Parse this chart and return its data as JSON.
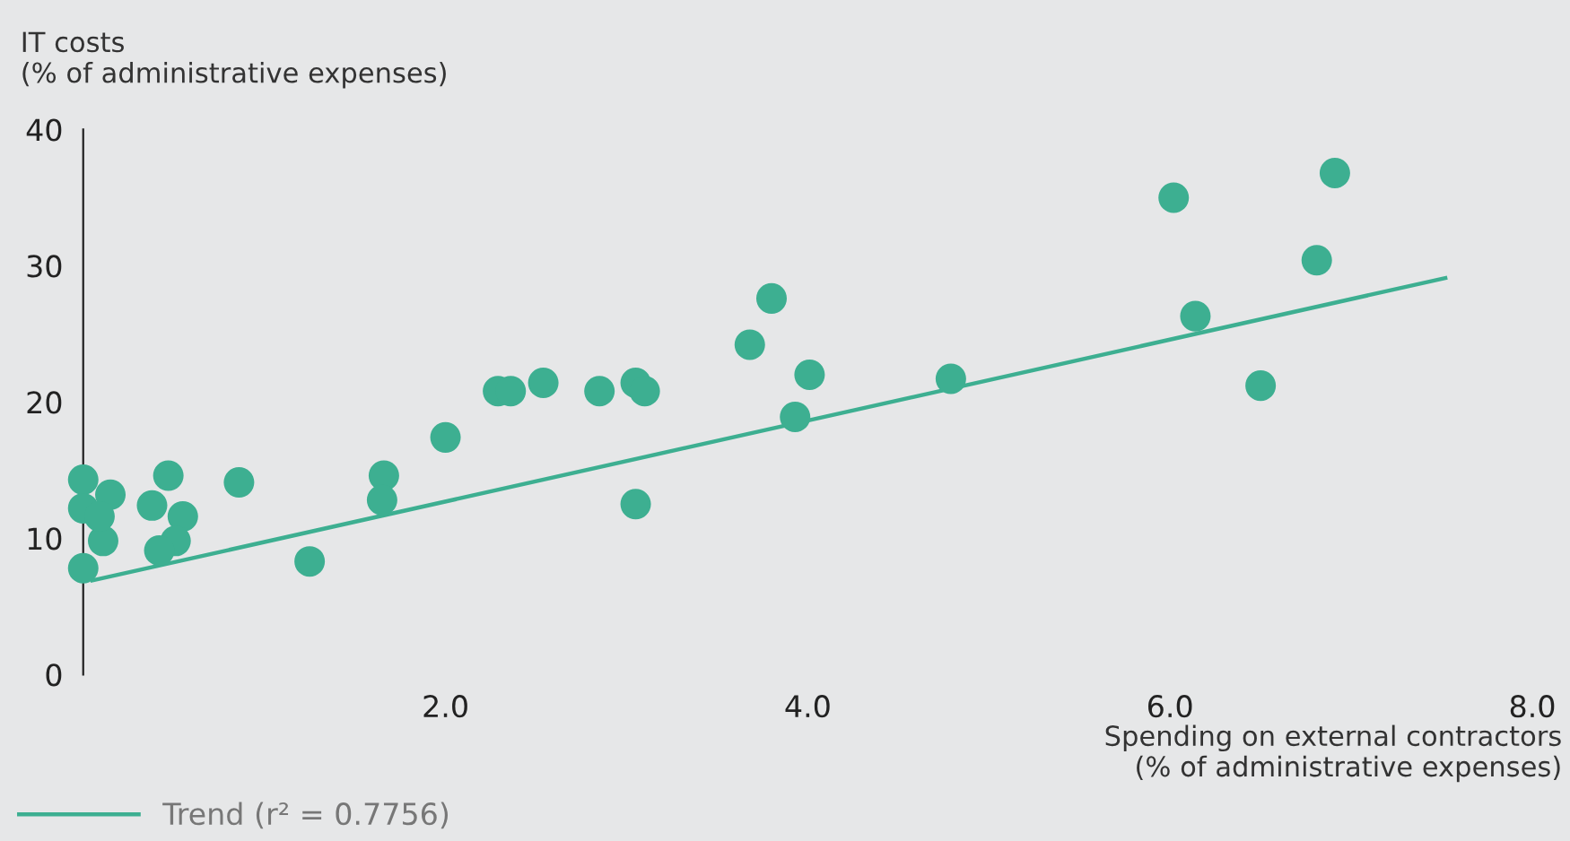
{
  "chart_data": {
    "type": "scatter",
    "ylabel": "IT costs\n(% of administrative expenses)",
    "xlabel": "Spending on external contractors\n(% of administrative expenses)",
    "xlim": [
      0,
      8
    ],
    "ylim": [
      0,
      40
    ],
    "xticks": [
      {
        "value": 2,
        "label": "2.0"
      },
      {
        "value": 4,
        "label": "4.0"
      },
      {
        "value": 6,
        "label": "6.0"
      },
      {
        "value": 8,
        "label": "8.0"
      }
    ],
    "yticks": [
      0,
      10,
      20,
      30,
      40
    ],
    "grid": false,
    "legend": "bottom left",
    "marker": "circle",
    "series": [
      {
        "color": "#3daf91",
        "x": [
          0.0,
          0.0,
          0.15,
          0.11,
          0.38,
          0.47,
          0.55,
          0.51,
          0.42,
          0.0,
          0.09,
          0.86,
          1.25,
          1.66,
          1.65,
          2.0,
          2.29,
          2.36,
          2.54,
          2.85,
          3.05,
          3.1,
          3.05,
          3.68,
          3.8,
          4.01,
          3.93,
          4.79,
          6.02,
          6.14,
          6.5,
          6.81,
          6.91
        ],
        "values": [
          14.3,
          12.2,
          13.2,
          9.8,
          12.4,
          14.6,
          11.6,
          9.8,
          9.1,
          7.8,
          11.6,
          14.1,
          8.3,
          14.6,
          12.8,
          17.4,
          20.8,
          20.8,
          21.4,
          20.8,
          21.4,
          20.8,
          12.5,
          24.2,
          27.6,
          22.0,
          18.9,
          21.7,
          35.0,
          26.3,
          21.2,
          30.4,
          36.8
        ]
      },
      {
        "type": "line",
        "name": "Trend (r² = 0.7756)",
        "color": "#3daf91",
        "x": [
          0.05,
          7.52
        ],
        "values": [
          6.9,
          29.1
        ],
        "marker": "none"
      }
    ]
  }
}
